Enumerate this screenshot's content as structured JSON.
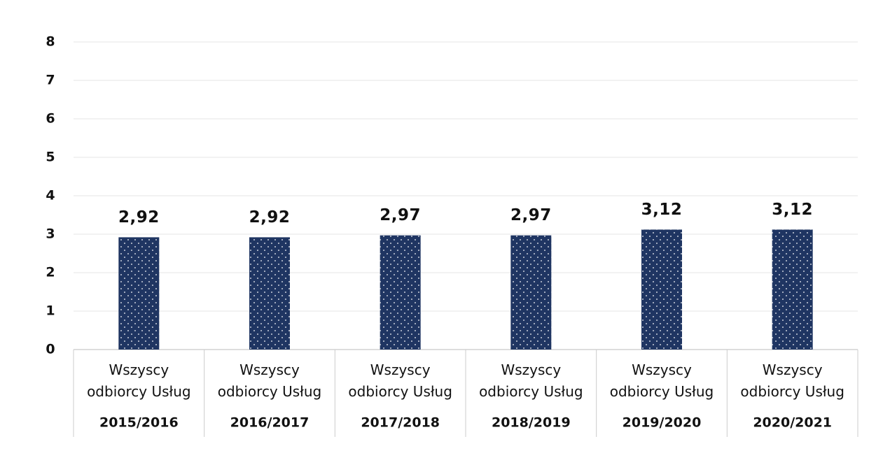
{
  "chart_data": {
    "type": "bar",
    "categories": [
      "2015/2016",
      "2016/2017",
      "2017/2018",
      "2018/2019",
      "2019/2020",
      "2020/2021"
    ],
    "series": [
      {
        "name": "Wszyscy odbiorcy Usług",
        "color": "#1f3562",
        "values": [
          2.92,
          2.92,
          2.97,
          2.97,
          3.12,
          3.12
        ],
        "value_labels": [
          "2,92",
          "2,92",
          "2,97",
          "2,97",
          "3,12",
          "3,12"
        ]
      }
    ],
    "ylim": [
      0,
      8
    ],
    "yticks": [
      0,
      1,
      2,
      3,
      4,
      5,
      6,
      7,
      8
    ],
    "grid": true
  }
}
